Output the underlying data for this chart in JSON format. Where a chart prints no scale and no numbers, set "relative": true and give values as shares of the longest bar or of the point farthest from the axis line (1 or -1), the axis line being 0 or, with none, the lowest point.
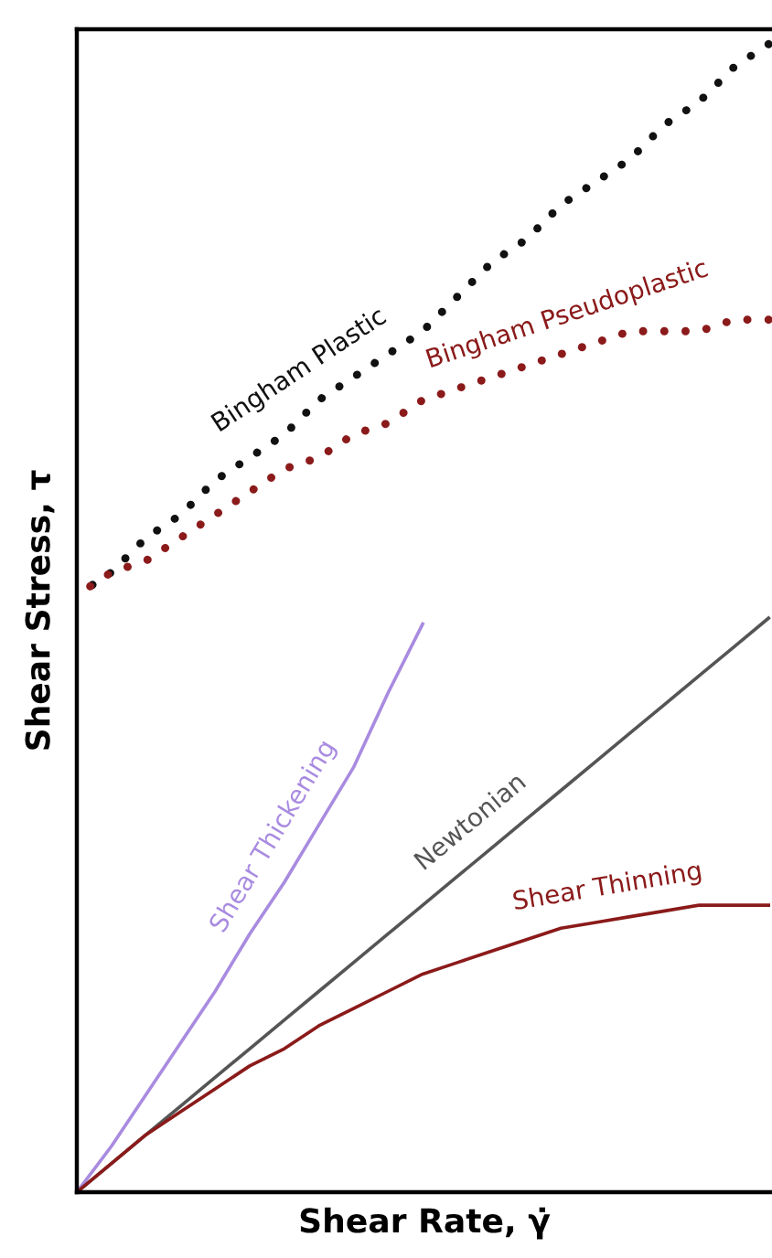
{
  "chart_data": {
    "type": "line",
    "relative": true,
    "xlabel": "Shear Rate, γ̇",
    "ylabel": "Shear Stress, τ",
    "categories": [
      null,
      null,
      null,
      null,
      null,
      null,
      null,
      null,
      null,
      null,
      null,
      null,
      null,
      null,
      null,
      null,
      null,
      null,
      null,
      null,
      null
    ],
    "legend": false,
    "marker": "none",
    "series": [
      {
        "name": "Bingham Plastic",
        "color": "#111111",
        "line_style": "dotted",
        "values": [
          0.52,
          0.54,
          0.57,
          0.59,
          0.62,
          0.64,
          0.66,
          0.69,
          0.71,
          0.73,
          0.75,
          0.78,
          0.81,
          0.83,
          0.86,
          0.88,
          0.9,
          0.93,
          0.95,
          0.98,
          1.0
        ]
      },
      {
        "name": "Bingham Pseudoplastic",
        "color": "#8b1a1a",
        "line_style": "dotted",
        "values": [
          0.52,
          0.54,
          0.55,
          0.57,
          0.59,
          0.61,
          0.63,
          0.64,
          0.66,
          0.67,
          0.69,
          0.7,
          0.71,
          0.72,
          0.73,
          0.74,
          0.75,
          0.75,
          0.75,
          0.76,
          0.76
        ]
      },
      {
        "name": "Shear Thickening",
        "color": "#a98be0",
        "line_style": "solid",
        "values": [
          0.0,
          0.04,
          0.085,
          0.13,
          0.175,
          0.225,
          0.27,
          0.32,
          0.37,
          0.435,
          0.495,
          null,
          null,
          null,
          null,
          null,
          null,
          null,
          null,
          null,
          null
        ]
      },
      {
        "name": "Newtonian",
        "color": "#555555",
        "line_style": "solid",
        "values": [
          0.0,
          0.025,
          0.05,
          0.075,
          0.1,
          0.125,
          0.15,
          0.175,
          0.2,
          0.225,
          0.25,
          0.275,
          0.3,
          0.325,
          0.35,
          0.375,
          0.4,
          0.425,
          0.45,
          0.475,
          0.5
        ]
      },
      {
        "name": "Shear Thinning",
        "color": "#8b1a1a",
        "line_style": "solid",
        "values": [
          0.0,
          0.025,
          0.05,
          0.07,
          0.09,
          0.11,
          0.125,
          0.145,
          0.16,
          0.175,
          0.19,
          0.2,
          0.21,
          0.22,
          0.23,
          0.235,
          0.24,
          0.245,
          0.25,
          0.25,
          0.25
        ]
      }
    ]
  }
}
